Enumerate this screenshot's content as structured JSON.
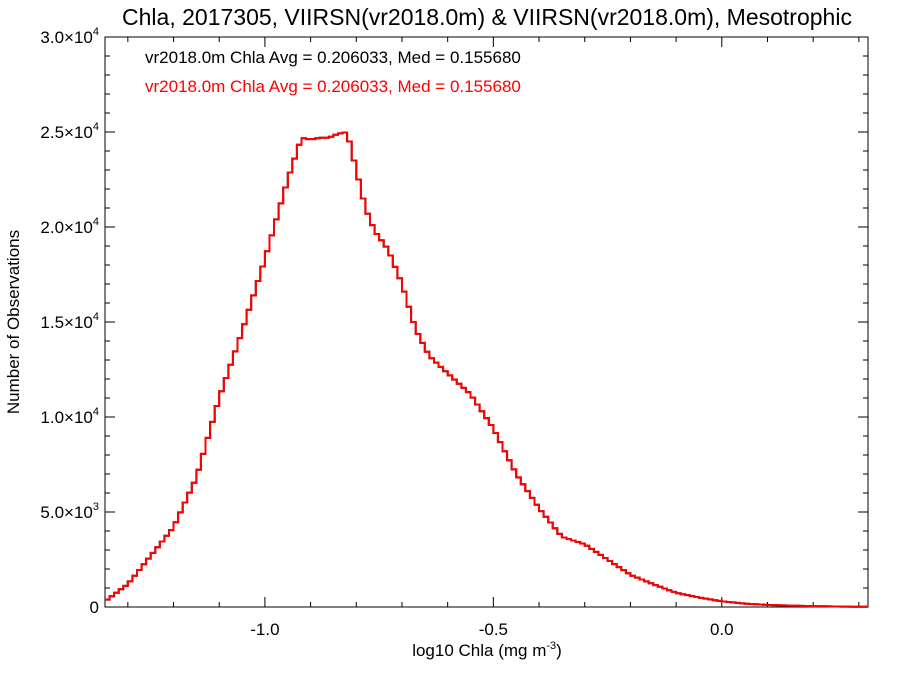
{
  "chart_data": {
    "type": "line",
    "title": "Chla, 2017305, VIIRSN(vr2018.0m) & VIIRSN(vr2018.0m), Mesotrophic",
    "xlabel": "log10 Chla (mg m",
    "xlabel_sup": "-3",
    "xlabel_close": ")",
    "ylabel": "Number of Observations",
    "xlim": [
      -1.35,
      0.32
    ],
    "ylim": [
      0,
      30000
    ],
    "x_ticks": [
      {
        "value": -1.0,
        "label": "-1.0"
      },
      {
        "value": -0.5,
        "label": "-0.5"
      },
      {
        "value": 0.0,
        "label": "0.0"
      }
    ],
    "y_ticks": [
      {
        "value": 0,
        "mantissa": "0",
        "exp": ""
      },
      {
        "value": 5000,
        "mantissa": "5.0×10",
        "exp": "3"
      },
      {
        "value": 10000,
        "mantissa": "1.0×10",
        "exp": "4"
      },
      {
        "value": 15000,
        "mantissa": "1.5×10",
        "exp": "4"
      },
      {
        "value": 20000,
        "mantissa": "2.0×10",
        "exp": "4"
      },
      {
        "value": 25000,
        "mantissa": "2.5×10",
        "exp": "4"
      },
      {
        "value": 30000,
        "mantissa": "3.0×10",
        "exp": "4"
      }
    ],
    "annotations": [
      {
        "text": "vr2018.0m Chla Avg = 0.206033, Med = 0.155680",
        "color": "#000000"
      },
      {
        "text": "vr2018.0m Chla Avg = 0.206033, Med = 0.155680",
        "color": "#ff0000"
      }
    ],
    "series": [
      {
        "color": "#000000",
        "x": [
          -1.35,
          -1.3,
          -1.25,
          -1.2,
          -1.15,
          -1.1,
          -1.05,
          -1.0,
          -0.95,
          -0.92,
          -0.9,
          -0.88,
          -0.86,
          -0.84,
          -0.82,
          -0.8,
          -0.78,
          -0.76,
          -0.73,
          -0.7,
          -0.67,
          -0.64,
          -0.6,
          -0.55,
          -0.5,
          -0.45,
          -0.4,
          -0.35,
          -0.3,
          -0.25,
          -0.2,
          -0.15,
          -0.1,
          -0.05,
          0.0,
          0.05,
          0.1,
          0.15,
          0.2,
          0.25,
          0.32
        ],
        "y": [
          300,
          1200,
          2700,
          4200,
          6800,
          11000,
          14500,
          18300,
          22500,
          24700,
          24600,
          24700,
          24700,
          24900,
          25000,
          23000,
          21000,
          19800,
          18800,
          17000,
          14600,
          13200,
          12300,
          11200,
          9400,
          7000,
          5200,
          3700,
          3300,
          2500,
          1700,
          1200,
          750,
          500,
          300,
          180,
          110,
          70,
          45,
          25,
          10
        ]
      },
      {
        "color": "#ff0000",
        "x": [
          -1.35,
          -1.3,
          -1.25,
          -1.2,
          -1.15,
          -1.1,
          -1.05,
          -1.0,
          -0.95,
          -0.92,
          -0.9,
          -0.88,
          -0.86,
          -0.84,
          -0.82,
          -0.8,
          -0.78,
          -0.76,
          -0.73,
          -0.7,
          -0.67,
          -0.64,
          -0.6,
          -0.55,
          -0.5,
          -0.45,
          -0.4,
          -0.35,
          -0.3,
          -0.25,
          -0.2,
          -0.15,
          -0.1,
          -0.05,
          0.0,
          0.05,
          0.1,
          0.15,
          0.2,
          0.25,
          0.32
        ],
        "y": [
          300,
          1200,
          2700,
          4200,
          6800,
          11000,
          14500,
          18300,
          22500,
          24700,
          24600,
          24700,
          24700,
          24900,
          25000,
          23000,
          21000,
          19800,
          18800,
          17000,
          14600,
          13200,
          12300,
          11200,
          9400,
          7000,
          5200,
          3700,
          3300,
          2500,
          1700,
          1200,
          750,
          500,
          300,
          180,
          110,
          70,
          45,
          25,
          10
        ]
      }
    ],
    "grid": false,
    "legend": "top-left"
  }
}
